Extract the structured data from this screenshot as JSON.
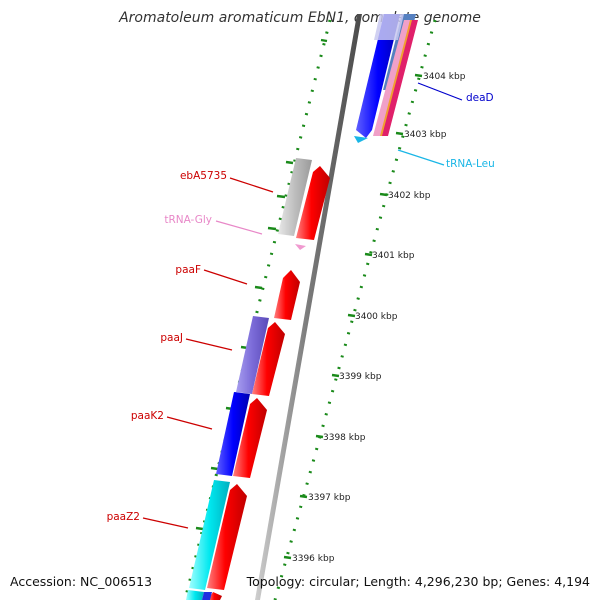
{
  "title": "Aromatoleum aromaticum EbN1, complete genome",
  "footer": {
    "accession": "Accession: NC_006513",
    "topology": "Topology: circular; Length: 4,296,230 bp; Genes: 4,194"
  },
  "colors": {
    "cds_forward": "#ff0000",
    "cds_gray": "#b8b8b8",
    "cds_purple": "#7b6bd8",
    "cds_blue": "#0000ff",
    "cds_cyan": "#00e0e8",
    "trna_gly": "#f09ad0",
    "trna_leu": "#1ab6e6",
    "backbone": "#777777",
    "ticks": "#1a8a1a"
  },
  "scale": {
    "ticks": [
      {
        "label": "3404 kbp"
      },
      {
        "label": "3403 kbp"
      },
      {
        "label": "3402 kbp"
      },
      {
        "label": "3401 kbp"
      },
      {
        "label": "3400 kbp"
      },
      {
        "label": "3399 kbp"
      },
      {
        "label": "3398 kbp"
      },
      {
        "label": "3397 kbp"
      },
      {
        "label": "3396 kbp"
      }
    ]
  },
  "gene_labels": [
    {
      "name": "deaD",
      "color": "#0000cc"
    },
    {
      "name": "tRNA-Leu",
      "color": "#1ab6e6"
    },
    {
      "name": "ebA5735",
      "color": "#cc0000"
    },
    {
      "name": "tRNA-Gly",
      "color": "#e888c8"
    },
    {
      "name": "paaF",
      "color": "#cc0000"
    },
    {
      "name": "paaJ",
      "color": "#cc0000"
    },
    {
      "name": "paaK2",
      "color": "#cc0000"
    },
    {
      "name": "paaZ2",
      "color": "#cc0000"
    }
  ]
}
